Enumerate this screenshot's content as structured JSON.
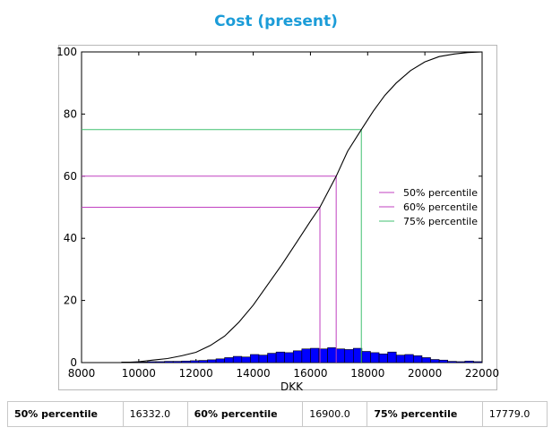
{
  "title": "Cost (present)",
  "chart_data": {
    "type": "line",
    "title": "Cost (present)",
    "xlabel": "DKK",
    "ylabel": "",
    "xlim": [
      8000,
      22000
    ],
    "ylim": [
      0,
      100
    ],
    "x_ticks": [
      8000,
      10000,
      12000,
      14000,
      16000,
      18000,
      20000,
      22000
    ],
    "y_ticks": [
      0,
      20,
      40,
      60,
      80,
      100
    ],
    "grid": false,
    "legend_position": "right",
    "cdf": {
      "x": [
        9400,
        10000,
        10500,
        11000,
        11500,
        12000,
        12500,
        13000,
        13500,
        14000,
        14500,
        15000,
        15500,
        16000,
        16332,
        16900,
        17300,
        17779,
        18200,
        18600,
        19000,
        19500,
        20000,
        20500,
        21000,
        21500,
        22000
      ],
      "y": [
        0,
        0.3,
        0.8,
        1.3,
        2.2,
        3.3,
        5.5,
        8.5,
        13,
        18.5,
        25,
        31.5,
        38.5,
        45.5,
        50,
        60,
        68,
        75,
        81,
        86,
        90,
        94,
        96.8,
        98.5,
        99.3,
        99.8,
        100
      ]
    },
    "histogram": {
      "bins": [
        9400,
        9700,
        10000,
        10300,
        10600,
        10900,
        11200,
        11500,
        11800,
        12100,
        12400,
        12700,
        13000,
        13300,
        13600,
        13900,
        14200,
        14500,
        14800,
        15100,
        15400,
        15700,
        16000,
        16300,
        16600,
        16900,
        17200,
        17500,
        17800,
        18100,
        18400,
        18700,
        19000,
        19300,
        19600,
        19900,
        20200,
        20500,
        20800,
        21100,
        21400,
        21700
      ],
      "values": [
        0.2,
        0.2,
        0.2,
        0.3,
        0.3,
        0.4,
        0.4,
        0.5,
        0.6,
        0.7,
        0.9,
        1.2,
        1.6,
        2.0,
        1.8,
        2.6,
        2.4,
        3.0,
        3.4,
        3.2,
        3.8,
        4.4,
        4.6,
        4.4,
        4.8,
        4.4,
        4.2,
        4.6,
        3.6,
        3.2,
        2.8,
        3.4,
        2.4,
        2.6,
        2.2,
        1.6,
        1.0,
        0.8,
        0.4,
        0.3,
        0.5,
        0.3
      ]
    },
    "percentiles": [
      {
        "name": "50% percentile",
        "p": 50,
        "value": 16332.0,
        "color": "#c040c0"
      },
      {
        "name": "60% percentile",
        "p": 60,
        "value": 16900.0,
        "color": "#c040c0"
      },
      {
        "name": "75% percentile",
        "p": 75,
        "value": 17779.0,
        "color": "#40c070"
      }
    ],
    "colors": {
      "line": "#000000",
      "histogram": "#0000ff"
    }
  },
  "table": {
    "cells": [
      {
        "label": "50% percentile",
        "value": "16332.0"
      },
      {
        "label": "60% percentile",
        "value": "16900.0"
      },
      {
        "label": "75% percentile",
        "value": "17779.0"
      }
    ]
  }
}
